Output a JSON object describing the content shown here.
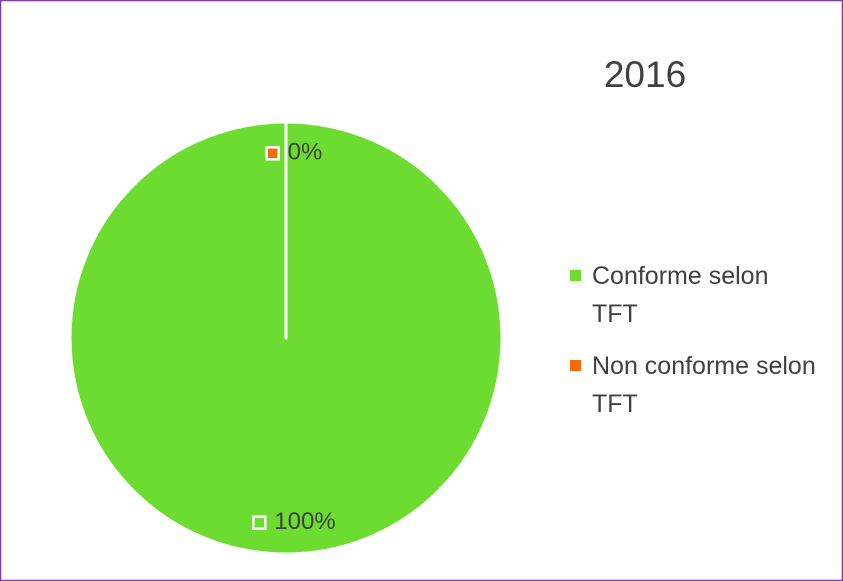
{
  "chart_data": {
    "type": "pie",
    "title": "2016",
    "categories": [
      "Conforme selon TFT",
      "Non conforme selon TFT"
    ],
    "values": [
      100,
      0
    ],
    "value_labels": [
      "100%",
      "0%"
    ],
    "colors": [
      "#6ddc30",
      "#f26b0a"
    ],
    "legend": "right"
  }
}
